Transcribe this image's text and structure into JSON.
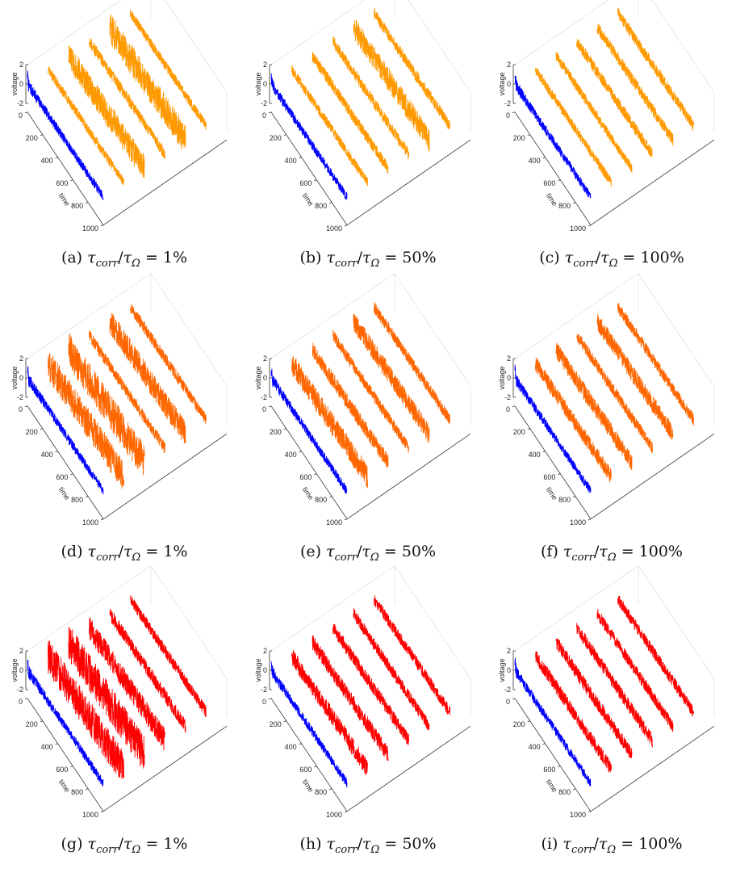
{
  "chart_data": [
    {
      "type": "line",
      "panel_label": "(a)",
      "caption": {
        "ratio_percent": "1%"
      },
      "zlabel": "voltage",
      "ylabel": "time",
      "z_ticks": [
        "2",
        "0",
        "-2"
      ],
      "y_ticks": [
        "0",
        "200",
        "400",
        "600",
        "800",
        "1000"
      ],
      "zlim": [
        -2,
        2
      ],
      "ylim": [
        0,
        1000
      ],
      "series": [
        {
          "color": "#0000ff",
          "amplitude": 0.7
        },
        {
          "color": "#ff9900",
          "amplitude": 0.5
        },
        {
          "color": "#ff9900",
          "amplitude": 1.4
        },
        {
          "color": "#ff9900",
          "amplitude": 0.6
        },
        {
          "color": "#ff9900",
          "amplitude": 1.6
        },
        {
          "color": "#ff9900",
          "amplitude": 0.5
        }
      ]
    },
    {
      "type": "line",
      "panel_label": "(b)",
      "caption": {
        "ratio_percent": "50%"
      },
      "zlabel": "voltage",
      "ylabel": "time",
      "z_ticks": [
        "2",
        "0",
        "-2"
      ],
      "y_ticks": [
        "0",
        "200",
        "400",
        "600",
        "800",
        "1000"
      ],
      "zlim": [
        -2,
        2
      ],
      "ylim": [
        0,
        1000
      ],
      "series": [
        {
          "color": "#0000ff",
          "amplitude": 0.7
        },
        {
          "color": "#ff9900",
          "amplitude": 0.5
        },
        {
          "color": "#ff9900",
          "amplitude": 0.6
        },
        {
          "color": "#ff9900",
          "amplitude": 0.6
        },
        {
          "color": "#ff9900",
          "amplitude": 1.2
        },
        {
          "color": "#ff9900",
          "amplitude": 0.6
        }
      ]
    },
    {
      "type": "line",
      "panel_label": "(c)",
      "caption": {
        "ratio_percent": "100%"
      },
      "zlabel": "voltage",
      "ylabel": "time",
      "z_ticks": [
        "2",
        "0",
        "-2"
      ],
      "y_ticks": [
        "0",
        "200",
        "400",
        "600",
        "800",
        "1000"
      ],
      "zlim": [
        -2,
        2
      ],
      "ylim": [
        0,
        1000
      ],
      "series": [
        {
          "color": "#0000ff",
          "amplitude": 0.7
        },
        {
          "color": "#ff9900",
          "amplitude": 0.5
        },
        {
          "color": "#ff9900",
          "amplitude": 0.5
        },
        {
          "color": "#ff9900",
          "amplitude": 0.6
        },
        {
          "color": "#ff9900",
          "amplitude": 0.6
        },
        {
          "color": "#ff9900",
          "amplitude": 0.6
        }
      ]
    },
    {
      "type": "line",
      "panel_label": "(d)",
      "caption": {
        "ratio_percent": "1%"
      },
      "zlabel": "voltage",
      "ylabel": "time",
      "z_ticks": [
        "2",
        "0",
        "-2"
      ],
      "y_ticks": [
        "0",
        "200",
        "400",
        "600",
        "800",
        "1000"
      ],
      "zlim": [
        -2,
        2
      ],
      "ylim": [
        0,
        1000
      ],
      "series": [
        {
          "color": "#0000ff",
          "amplitude": 0.7
        },
        {
          "color": "#ff6600",
          "amplitude": 1.6
        },
        {
          "color": "#ff6600",
          "amplitude": 1.8
        },
        {
          "color": "#ff6600",
          "amplitude": 0.6
        },
        {
          "color": "#ff6600",
          "amplitude": 1.3
        },
        {
          "color": "#ff6600",
          "amplitude": 0.6
        }
      ]
    },
    {
      "type": "line",
      "panel_label": "(e)",
      "caption": {
        "ratio_percent": "50%"
      },
      "zlabel": "voltage",
      "ylabel": "time",
      "z_ticks": [
        "2",
        "0",
        "-2"
      ],
      "y_ticks": [
        "0",
        "200",
        "400",
        "600",
        "800",
        "1000"
      ],
      "zlim": [
        -2,
        2
      ],
      "ylim": [
        0,
        1000
      ],
      "series": [
        {
          "color": "#0000ff",
          "amplitude": 0.7
        },
        {
          "color": "#ff6600",
          "amplitude": 1.2
        },
        {
          "color": "#ff6600",
          "amplitude": 0.8
        },
        {
          "color": "#ff6600",
          "amplitude": 0.6
        },
        {
          "color": "#ff6600",
          "amplitude": 1.0
        },
        {
          "color": "#ff6600",
          "amplitude": 0.6
        }
      ]
    },
    {
      "type": "line",
      "panel_label": "(f)",
      "caption": {
        "ratio_percent": "100%"
      },
      "zlabel": "voltage",
      "ylabel": "time",
      "z_ticks": [
        "2",
        "0",
        "-2"
      ],
      "y_ticks": [
        "0",
        "200",
        "400",
        "600",
        "800",
        "1000"
      ],
      "zlim": [
        -2,
        2
      ],
      "ylim": [
        0,
        1000
      ],
      "series": [
        {
          "color": "#0000ff",
          "amplitude": 0.7
        },
        {
          "color": "#ff6600",
          "amplitude": 0.8
        },
        {
          "color": "#ff6600",
          "amplitude": 0.9
        },
        {
          "color": "#ff6600",
          "amplitude": 0.6
        },
        {
          "color": "#ff6600",
          "amplitude": 0.9
        },
        {
          "color": "#ff6600",
          "amplitude": 0.6
        }
      ]
    },
    {
      "type": "line",
      "panel_label": "(g)",
      "caption": {
        "ratio_percent": "1%"
      },
      "zlabel": "voltage",
      "ylabel": "time",
      "z_ticks": [
        "2",
        "0",
        "-2"
      ],
      "y_ticks": [
        "0",
        "200",
        "400",
        "600",
        "800",
        "1000"
      ],
      "zlim": [
        -2,
        2
      ],
      "ylim": [
        0,
        1000
      ],
      "series": [
        {
          "color": "#0000ff",
          "amplitude": 0.7
        },
        {
          "color": "#ff0000",
          "amplitude": 1.8
        },
        {
          "color": "#ff0000",
          "amplitude": 1.9
        },
        {
          "color": "#ff0000",
          "amplitude": 1.2
        },
        {
          "color": "#ff0000",
          "amplitude": 0.7
        },
        {
          "color": "#ff0000",
          "amplitude": 0.6
        }
      ]
    },
    {
      "type": "line",
      "panel_label": "(h)",
      "caption": {
        "ratio_percent": "50%"
      },
      "zlabel": "voltage",
      "ylabel": "time",
      "z_ticks": [
        "2",
        "0",
        "-2"
      ],
      "y_ticks": [
        "0",
        "200",
        "400",
        "600",
        "800",
        "1000"
      ],
      "zlim": [
        -2,
        2
      ],
      "ylim": [
        0,
        1000
      ],
      "series": [
        {
          "color": "#0000ff",
          "amplitude": 0.7
        },
        {
          "color": "#ff0000",
          "amplitude": 0.9
        },
        {
          "color": "#ff0000",
          "amplitude": 0.8
        },
        {
          "color": "#ff0000",
          "amplitude": 0.7
        },
        {
          "color": "#ff0000",
          "amplitude": 0.6
        },
        {
          "color": "#ff0000",
          "amplitude": 0.6
        }
      ]
    },
    {
      "type": "line",
      "panel_label": "(i)",
      "caption": {
        "ratio_percent": "100%"
      },
      "zlabel": "voltage",
      "ylabel": "time",
      "z_ticks": [
        "2",
        "0",
        "-2"
      ],
      "y_ticks": [
        "0",
        "200",
        "400",
        "600",
        "800",
        "1000"
      ],
      "zlim": [
        -2,
        2
      ],
      "ylim": [
        0,
        1000
      ],
      "series": [
        {
          "color": "#0000ff",
          "amplitude": 0.7
        },
        {
          "color": "#ff0000",
          "amplitude": 0.7
        },
        {
          "color": "#ff0000",
          "amplitude": 0.7
        },
        {
          "color": "#ff0000",
          "amplitude": 0.7
        },
        {
          "color": "#ff0000",
          "amplitude": 0.6
        },
        {
          "color": "#ff0000",
          "amplitude": 0.6
        }
      ]
    }
  ]
}
